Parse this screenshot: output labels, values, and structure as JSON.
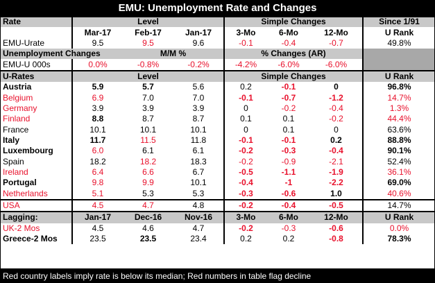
{
  "title": "EMU: Unemployment Rate and Changes",
  "footer": "Red country labels imply rate is below its median; Red numbers in table flag decline",
  "colors": {
    "red": "#e8102b",
    "header_gray": "#c8c8c8",
    "dark_gray": "#a8a8a8"
  },
  "header1": {
    "rate": "Rate",
    "level": "Level",
    "simple": "Simple Changes",
    "since": "Since 1/91"
  },
  "header2": {
    "c1": "Mar-17",
    "c2": "Feb-17",
    "c3": "Jan-17",
    "c4": "3-Mo",
    "c5": "6-Mo",
    "c6": "12-Mo",
    "c7": "U Rank"
  },
  "emu_urate": {
    "label": "EMU-Urate",
    "v": [
      "9.5",
      "9.5",
      "9.6",
      "-0.1",
      "-0.4",
      "-0.7",
      "49.8%"
    ]
  },
  "unemp_changes": {
    "label": "Unemployment Changes",
    "mm": "M/M %",
    "pct": "% Changes (AR)"
  },
  "emu_000s": {
    "label": "EMU-U 000s",
    "v": [
      "0.0%",
      "-0.8%",
      "-0.2%",
      "-4.2%",
      "-6.0%",
      "-6.0%"
    ]
  },
  "urates_header": {
    "label": "U-Rates",
    "level": "Level",
    "simple": "Simple Changes",
    "rank": "U Rank"
  },
  "rows": [
    {
      "label": "Austria",
      "v": [
        "5.9",
        "5.7",
        "5.6",
        "0.2",
        "-0.1",
        "0",
        "96.8%"
      ]
    },
    {
      "label": "Belgium",
      "v": [
        "6.9",
        "7.0",
        "7.0",
        "-0.1",
        "-0.7",
        "-1.2",
        "14.7%"
      ]
    },
    {
      "label": "Germany",
      "v": [
        "3.9",
        "3.9",
        "3.9",
        "0",
        "-0.2",
        "-0.4",
        "1.3%"
      ]
    },
    {
      "label": "Finland",
      "v": [
        "8.8",
        "8.7",
        "8.7",
        "0.1",
        "0.1",
        "-0.2",
        "44.4%"
      ]
    },
    {
      "label": "France",
      "v": [
        "10.1",
        "10.1",
        "10.1",
        "0",
        "0.1",
        "0",
        "63.6%"
      ]
    },
    {
      "label": "Italy",
      "v": [
        "11.7",
        "11.5",
        "11.8",
        "-0.1",
        "-0.1",
        "0.2",
        "88.8%"
      ]
    },
    {
      "label": "Luxembourg",
      "v": [
        "6.0",
        "6.1",
        "6.1",
        "-0.2",
        "-0.3",
        "-0.4",
        "90.1%"
      ]
    },
    {
      "label": "Spain",
      "v": [
        "18.2",
        "18.2",
        "18.3",
        "-0.2",
        "-0.9",
        "-2.1",
        "52.4%"
      ]
    },
    {
      "label": "Ireland",
      "v": [
        "6.4",
        "6.6",
        "6.7",
        "-0.5",
        "-1.1",
        "-1.9",
        "36.1%"
      ]
    },
    {
      "label": "Portugal",
      "v": [
        "9.8",
        "9.9",
        "10.1",
        "-0.4",
        "-1",
        "-2.2",
        "69.0%"
      ]
    },
    {
      "label": "Netherlands",
      "v": [
        "5.1",
        "5.3",
        "5.3",
        "-0.3",
        "-0.6",
        "1.0",
        "40.6%"
      ]
    }
  ],
  "usa": {
    "label": "USA",
    "v": [
      "4.5",
      "4.7",
      "4.8",
      "-0.2",
      "-0.4",
      "-0.5",
      "14.7%"
    ]
  },
  "lagging": {
    "label": "Lagging:",
    "h": [
      "Jan-17",
      "Dec-16",
      "Nov-16",
      "3-Mo",
      "6-Mo",
      "12-Mo",
      "U Rank"
    ]
  },
  "uk": {
    "label": "UK-2 Mos",
    "v": [
      "4.5",
      "4.6",
      "4.7",
      "-0.2",
      "-0.3",
      "-0.6",
      "0.0%"
    ]
  },
  "greece": {
    "label": "Greece-2 Mos",
    "v": [
      "23.5",
      "23.5",
      "23.4",
      "0.2",
      "0.2",
      "-0.8",
      "78.3%"
    ]
  }
}
